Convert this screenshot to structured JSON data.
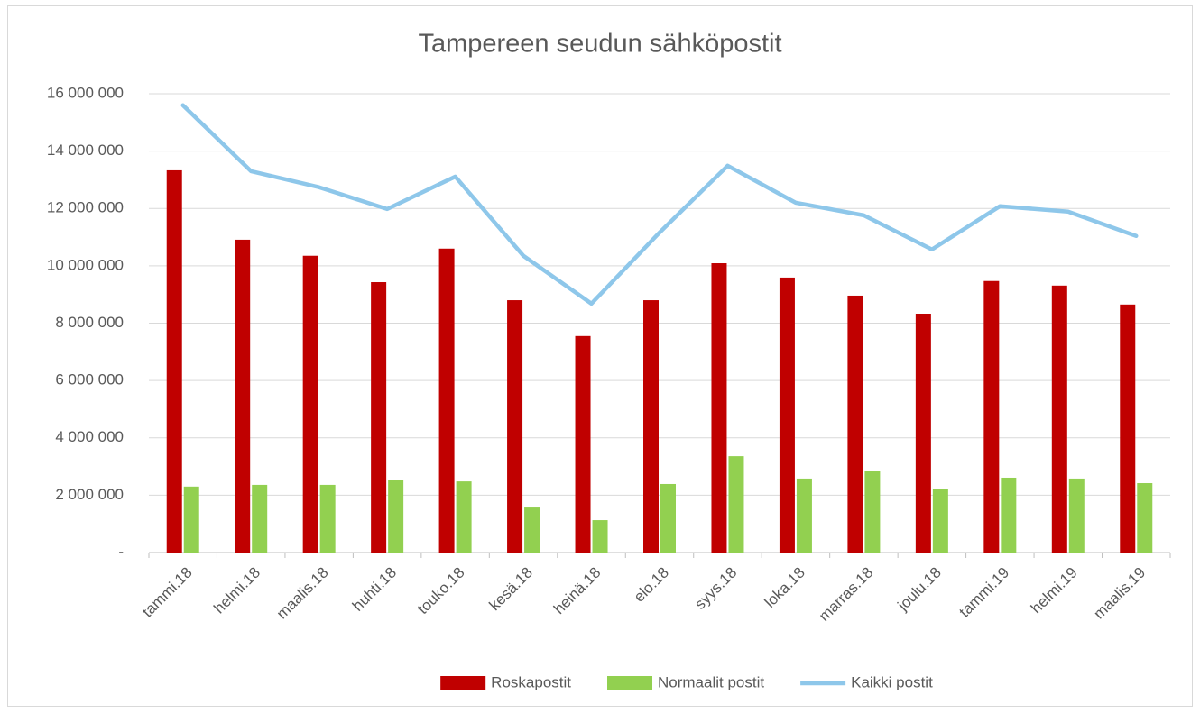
{
  "chart_data": {
    "type": "combo",
    "title": "Tampereen seudun sähköpostit",
    "categories": [
      "tammi.18",
      "helmi.18",
      "maalis.18",
      "huhti.18",
      "touko.18",
      "kesä.18",
      "heinä.18",
      "elo.18",
      "syys.18",
      "loka.18",
      "marras.18",
      "joulu.18",
      "tammi.19",
      "helmi.19",
      "maalis.19"
    ],
    "series": [
      {
        "name": "Roskapostit",
        "type": "bar",
        "color": "#c00000",
        "values": [
          13330000,
          10910000,
          10350000,
          9430000,
          10600000,
          8800000,
          7550000,
          8800000,
          10090000,
          9590000,
          8960000,
          8330000,
          9470000,
          9310000,
          8650000
        ]
      },
      {
        "name": "Normaalit postit",
        "type": "bar",
        "color": "#92d050",
        "values": [
          2300000,
          2360000,
          2360000,
          2520000,
          2480000,
          1570000,
          1130000,
          2390000,
          3360000,
          2580000,
          2830000,
          2200000,
          2610000,
          2580000,
          2420000
        ]
      },
      {
        "name": "Kaikki postit",
        "type": "line",
        "color": "#8ec7ea",
        "values": [
          15600000,
          13300000,
          12740000,
          11980000,
          13110000,
          10350000,
          8680000,
          11160000,
          13490000,
          12200000,
          11760000,
          10570000,
          12080000,
          11890000,
          11040000
        ]
      }
    ],
    "ylim": [
      0,
      16000000
    ],
    "yticks": [
      {
        "value": 0,
        "label": "-"
      },
      {
        "value": 2000000,
        "label": "2 000 000"
      },
      {
        "value": 4000000,
        "label": "4 000 000"
      },
      {
        "value": 6000000,
        "label": "6 000 000"
      },
      {
        "value": 8000000,
        "label": "8 000 000"
      },
      {
        "value": 10000000,
        "label": "10 000 000"
      },
      {
        "value": 12000000,
        "label": "12 000 000"
      },
      {
        "value": 14000000,
        "label": "14 000 000"
      },
      {
        "value": 16000000,
        "label": "16 000 000"
      }
    ],
    "grid": true,
    "legend": "bottom"
  }
}
